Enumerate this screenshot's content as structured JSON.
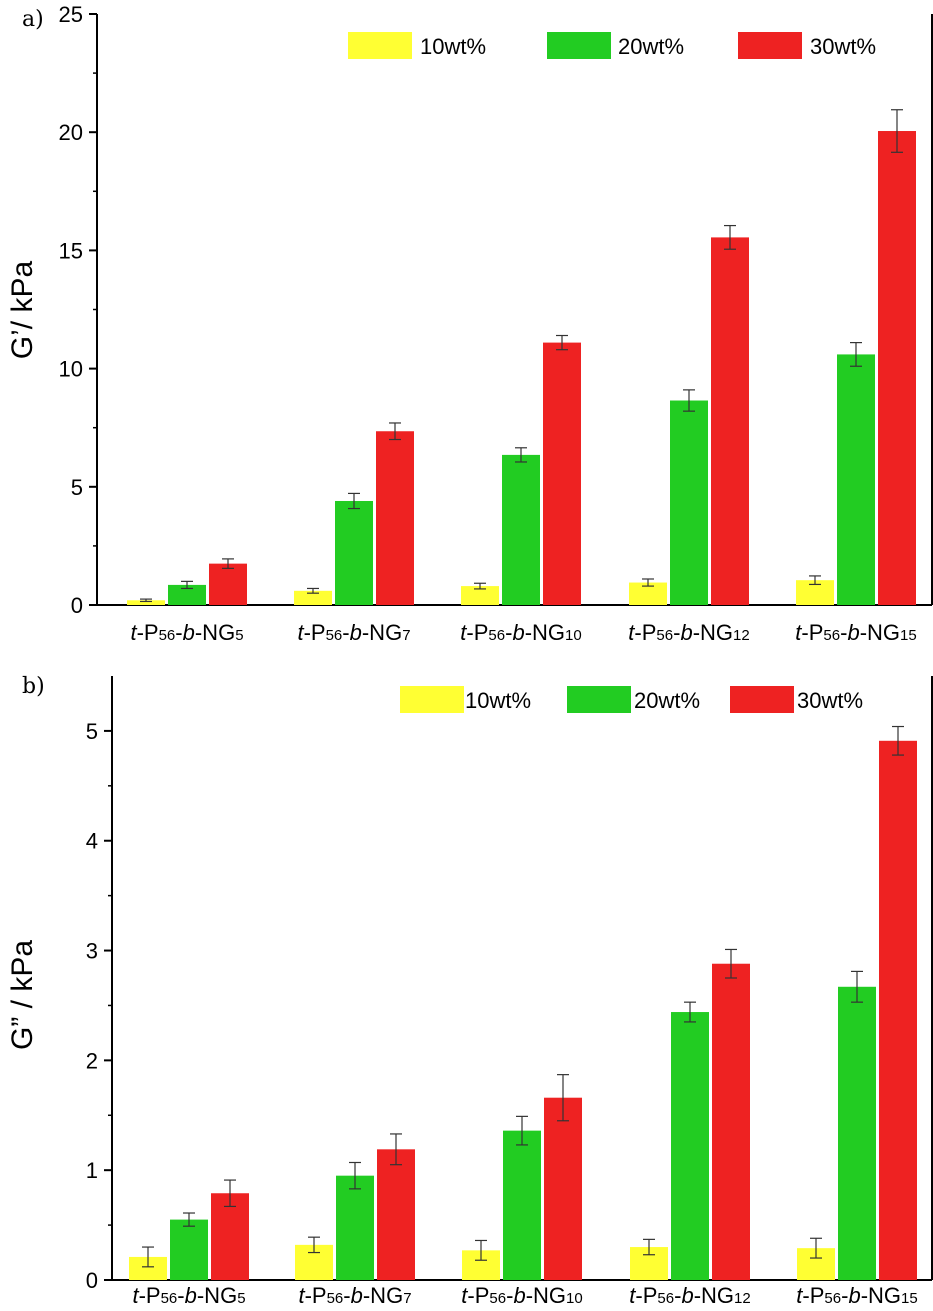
{
  "chart_data": [
    {
      "type": "bar",
      "panel": "a)",
      "ylabel": "G’/ kPa",
      "ylim": [
        0,
        25
      ],
      "yticks": [
        0,
        5,
        10,
        15,
        20,
        25
      ],
      "categories": [
        {
          "prefix": "t",
          "a": "-P",
          "sub1": "56",
          "b": "b",
          "c": "-NG",
          "sub2": "5"
        },
        {
          "prefix": "t",
          "a": "-P",
          "sub1": "56",
          "b": "b",
          "c": "-NG",
          "sub2": "7"
        },
        {
          "prefix": "t",
          "a": "-P",
          "sub1": "56",
          "b": "b",
          "c": "-NG",
          "sub2": "10"
        },
        {
          "prefix": "t",
          "a": "-P",
          "sub1": "56",
          "b": "b",
          "c": "-NG",
          "sub2": "12"
        },
        {
          "prefix": "t",
          "a": "-P",
          "sub1": "56",
          "b": "b",
          "c": "-NG",
          "sub2": "15"
        }
      ],
      "series": [
        {
          "name": "10wt%",
          "color": "#ffff33",
          "values": [
            0.2,
            0.6,
            0.8,
            0.95,
            1.05
          ],
          "errors": [
            0.05,
            0.1,
            0.12,
            0.15,
            0.18
          ]
        },
        {
          "name": "20wt%",
          "color": "#22cc22",
          "values": [
            0.85,
            4.4,
            6.35,
            8.65,
            10.6
          ],
          "errors": [
            0.15,
            0.32,
            0.3,
            0.45,
            0.5
          ]
        },
        {
          "name": "30wt%",
          "color": "#ee2222",
          "values": [
            1.75,
            7.35,
            11.1,
            15.55,
            20.05
          ],
          "errors": [
            0.2,
            0.35,
            0.3,
            0.5,
            0.9
          ]
        }
      ],
      "legend": "top-right"
    },
    {
      "type": "bar",
      "panel": "b)",
      "ylabel": "G” / kPa",
      "ylim": [
        0,
        5.5
      ],
      "yticks": [
        0,
        1,
        2,
        3,
        4,
        5
      ],
      "categories": [
        {
          "prefix": "t",
          "a": "-P",
          "sub1": "56",
          "b": "b",
          "c": "-NG",
          "sub2": "5"
        },
        {
          "prefix": "t",
          "a": "-P",
          "sub1": "56",
          "b": "b",
          "c": "-NG",
          "sub2": "7"
        },
        {
          "prefix": "t",
          "a": "-P",
          "sub1": "56",
          "b": "b",
          "c": "-NG",
          "sub2": "10"
        },
        {
          "prefix": "t",
          "a": "-P",
          "sub1": "56",
          "b": "b",
          "c": "-NG",
          "sub2": "12"
        },
        {
          "prefix": "t",
          "a": "-P",
          "sub1": "56",
          "b": "b",
          "c": "-NG",
          "sub2": "15"
        }
      ],
      "series": [
        {
          "name": "10wt%",
          "color": "#ffff33",
          "values": [
            0.21,
            0.32,
            0.27,
            0.3,
            0.29
          ],
          "errors": [
            0.09,
            0.07,
            0.09,
            0.07,
            0.09
          ]
        },
        {
          "name": "20wt%",
          "color": "#22cc22",
          "values": [
            0.55,
            0.95,
            1.36,
            2.44,
            2.67
          ],
          "errors": [
            0.06,
            0.12,
            0.13,
            0.09,
            0.14
          ]
        },
        {
          "name": "30wt%",
          "color": "#ee2222",
          "values": [
            0.79,
            1.19,
            1.66,
            2.88,
            4.91
          ],
          "errors": [
            0.12,
            0.14,
            0.21,
            0.13,
            0.13
          ]
        }
      ],
      "legend": "top-right"
    }
  ]
}
